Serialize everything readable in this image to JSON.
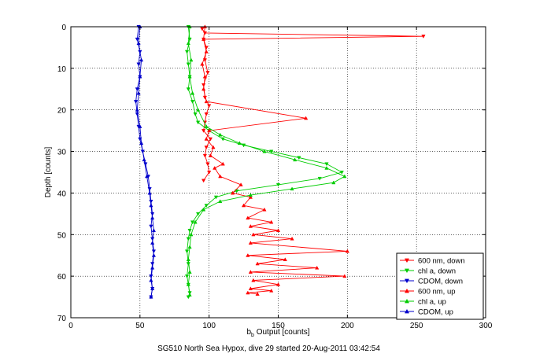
{
  "chart_data": {
    "type": "line",
    "title": "SG510 North Sea Hypox, dive 29 started 20-Aug-2011 03:42:54",
    "xlabel_main": "b",
    "xlabel_sub": "b",
    "xlabel_rest": " Output [counts]",
    "ylabel": "Depth [counts]",
    "xlim": [
      0,
      300
    ],
    "ylim": [
      0,
      70
    ],
    "y_reversed": true,
    "grid": true,
    "legend_position": "lower-right",
    "xticks": [
      0,
      50,
      100,
      150,
      200,
      250,
      300
    ],
    "yticks": [
      0,
      10,
      20,
      30,
      40,
      50,
      60,
      70
    ],
    "series": [
      {
        "name": "600 nm, down",
        "color": "#ff0000",
        "marker": "triangle-down",
        "x": [
          95,
          97,
          255,
          96,
          98,
          97,
          99,
          96,
          97,
          100,
          98,
          97,
          96,
          101,
          98,
          97,
          99,
          100,
          96
        ],
        "y": [
          0.5,
          1.5,
          2.3,
          3,
          5,
          8,
          11,
          14,
          17,
          19,
          21,
          23,
          25,
          27,
          29,
          31,
          33,
          35,
          37
        ]
      },
      {
        "name": "chl a, down",
        "color": "#00cc00",
        "marker": "triangle-down",
        "x": [
          85,
          86,
          84,
          85,
          86,
          85,
          88,
          90,
          92,
          100,
          110,
          125,
          145,
          165,
          185,
          196,
          180,
          150,
          120,
          105,
          98,
          92,
          88,
          86,
          85,
          84,
          85,
          84,
          85,
          86,
          85
        ],
        "y": [
          0,
          3,
          6,
          9,
          12,
          15,
          18,
          21,
          23,
          25,
          27,
          28.5,
          30,
          31.5,
          33,
          35,
          36.5,
          38,
          39.5,
          41,
          43,
          45,
          47,
          49,
          51,
          54,
          57,
          60,
          62,
          64,
          65
        ]
      },
      {
        "name": "CDOM, down",
        "color": "#0000cc",
        "marker": "triangle-down",
        "x": [
          49,
          48,
          50,
          49,
          50,
          48,
          47,
          48,
          49,
          50,
          52,
          54,
          56,
          57,
          58,
          59,
          58,
          59,
          60,
          59,
          58,
          59,
          58
        ],
        "y": [
          0,
          3,
          6,
          9,
          12,
          15,
          18,
          21,
          24,
          27,
          30,
          33,
          36,
          39,
          42,
          45,
          48,
          51,
          54,
          57,
          60,
          63,
          65
        ]
      },
      {
        "name": "600 nm, up",
        "color": "#ff0000",
        "marker": "triangle-up",
        "x": [
          97,
          96,
          98,
          95,
          97,
          96,
          98,
          170,
          100,
          98,
          103,
          101,
          110,
          104,
          108,
          123,
          117,
          130,
          125,
          140,
          128,
          145,
          130,
          150,
          132,
          160,
          130,
          200,
          128,
          155,
          135,
          178,
          130,
          198,
          132,
          150,
          130,
          145,
          128,
          135
        ],
        "y": [
          0,
          3,
          6,
          9,
          12,
          15,
          18,
          22,
          25,
          27,
          29,
          31,
          33,
          34,
          36,
          38,
          40,
          41,
          43,
          44,
          46,
          47,
          48,
          49,
          50,
          51,
          52,
          54,
          55,
          56,
          57,
          58,
          59,
          60,
          61,
          62,
          63,
          63.5,
          64,
          64.3
        ]
      },
      {
        "name": "chl a, up",
        "color": "#00cc00",
        "marker": "triangle-up",
        "x": [
          86,
          85,
          87,
          86,
          88,
          92,
          98,
          108,
          122,
          140,
          162,
          185,
          198,
          190,
          160,
          130,
          108,
          96,
          90,
          87,
          86,
          85,
          86,
          85,
          86
        ],
        "y": [
          0,
          4,
          8,
          12,
          16,
          20,
          24,
          26,
          28,
          30,
          32,
          34,
          36,
          37.5,
          39,
          40.5,
          42,
          44,
          47,
          50,
          53,
          56,
          59,
          62,
          64.5
        ]
      },
      {
        "name": "CDOM, up",
        "color": "#0000cc",
        "marker": "triangle-up",
        "x": [
          50,
          49,
          51,
          50,
          49,
          48,
          50,
          51,
          53,
          55,
          57,
          58,
          59,
          60,
          59,
          60,
          59,
          58,
          59,
          58
        ],
        "y": [
          0,
          4,
          8,
          12,
          16,
          20,
          24,
          28,
          32,
          36,
          40,
          43,
          46,
          49,
          52,
          55,
          58,
          61,
          63,
          65
        ]
      }
    ]
  }
}
